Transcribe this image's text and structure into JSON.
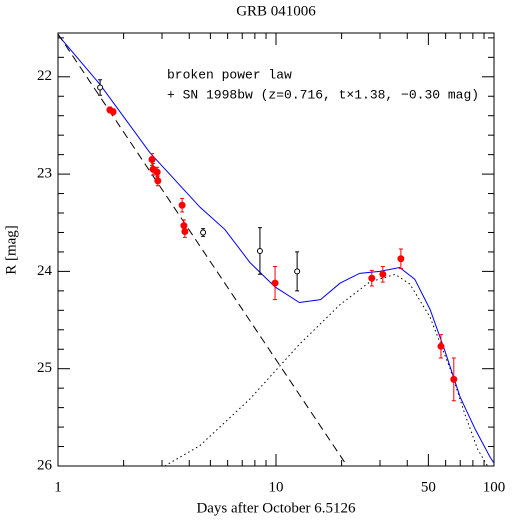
{
  "chart_data": {
    "type": "scatter",
    "title": "GRB 041006",
    "x_label": "Days after October 6.5126",
    "y_label": "R [mag]",
    "annotations": [
      "broken power law",
      "+ SN 1998bw (z=0.716, t×1.38, −0.30 mag)"
    ],
    "x_log": true,
    "y_inverted": true,
    "xlim": [
      1,
      100
    ],
    "ylim": [
      21.55,
      26
    ],
    "xticks": [
      1,
      10,
      50,
      100
    ],
    "yticks": [
      22,
      23,
      24,
      25,
      26
    ],
    "xminor_ticks": [
      2,
      3,
      4,
      5,
      6,
      7,
      8,
      9,
      20,
      30,
      40,
      60,
      70,
      80,
      90
    ],
    "yminor_ticks": [
      21.6,
      21.8,
      22.2,
      22.4,
      22.6,
      22.8,
      23.2,
      23.4,
      23.6,
      23.8,
      24.2,
      24.4,
      24.6,
      24.8,
      25.2,
      25.4,
      25.6,
      25.8
    ],
    "series": [
      {
        "style": "line",
        "color": "#0000ff",
        "dash": "solid",
        "x": [
          1,
          1.56,
          2.64,
          4.48,
          5.83,
          7.6,
          9.9,
          12.8,
          16.0,
          19.7,
          24.2,
          29.9,
          36.9,
          43.3,
          50.9,
          59.6,
          69.9,
          81.9,
          96.0,
          100
        ],
        "values": [
          21.57,
          22.08,
          22.78,
          23.34,
          23.57,
          23.91,
          24.16,
          24.32,
          24.29,
          24.12,
          24.02,
          24.0,
          23.96,
          24.08,
          24.39,
          24.82,
          25.29,
          25.62,
          25.91,
          25.97
        ]
      },
      {
        "style": "line",
        "color": "#000000",
        "dash": "dashed",
        "x": [
          1,
          21.2
        ],
        "values": [
          21.56,
          26
        ]
      },
      {
        "style": "line",
        "color": "#000000",
        "dash": "dotted",
        "x": [
          3.09,
          4.48,
          7.6,
          12.8,
          19.7,
          26.9,
          35.2,
          41.1,
          50.9,
          62.9,
          73.6,
          84.2,
          93.4
        ],
        "values": [
          26,
          25.79,
          25.31,
          24.75,
          24.34,
          24.11,
          24.03,
          24.13,
          24.47,
          25.0,
          25.47,
          25.83,
          26.0
        ]
      },
      {
        "style": "errorbar",
        "color": "#ff0000",
        "filled": true,
        "x": [
          1.73,
          1.79,
          2.7,
          2.73,
          2.85,
          2.87,
          3.71,
          3.78,
          3.82,
          9.9,
          27.5,
          30.9,
          37.4,
          57.1,
          65.4
        ],
        "values": [
          22.34,
          22.36,
          22.85,
          22.95,
          22.98,
          23.07,
          23.32,
          23.53,
          23.59,
          24.12,
          24.07,
          24.03,
          23.87,
          24.77,
          25.11
        ],
        "errors": [
          0.03,
          0.03,
          0.06,
          0.06,
          0.05,
          0.05,
          0.07,
          0.06,
          0.06,
          0.17,
          0.08,
          0.08,
          0.1,
          0.12,
          0.22
        ]
      },
      {
        "style": "errorbar",
        "color": "#000000",
        "filled": false,
        "x": [
          1.56,
          4.63,
          8.44,
          12.5
        ],
        "values": [
          22.11,
          23.6,
          23.79,
          24.0
        ],
        "errors": [
          0.08,
          0.04,
          0.24,
          0.2
        ]
      }
    ]
  }
}
